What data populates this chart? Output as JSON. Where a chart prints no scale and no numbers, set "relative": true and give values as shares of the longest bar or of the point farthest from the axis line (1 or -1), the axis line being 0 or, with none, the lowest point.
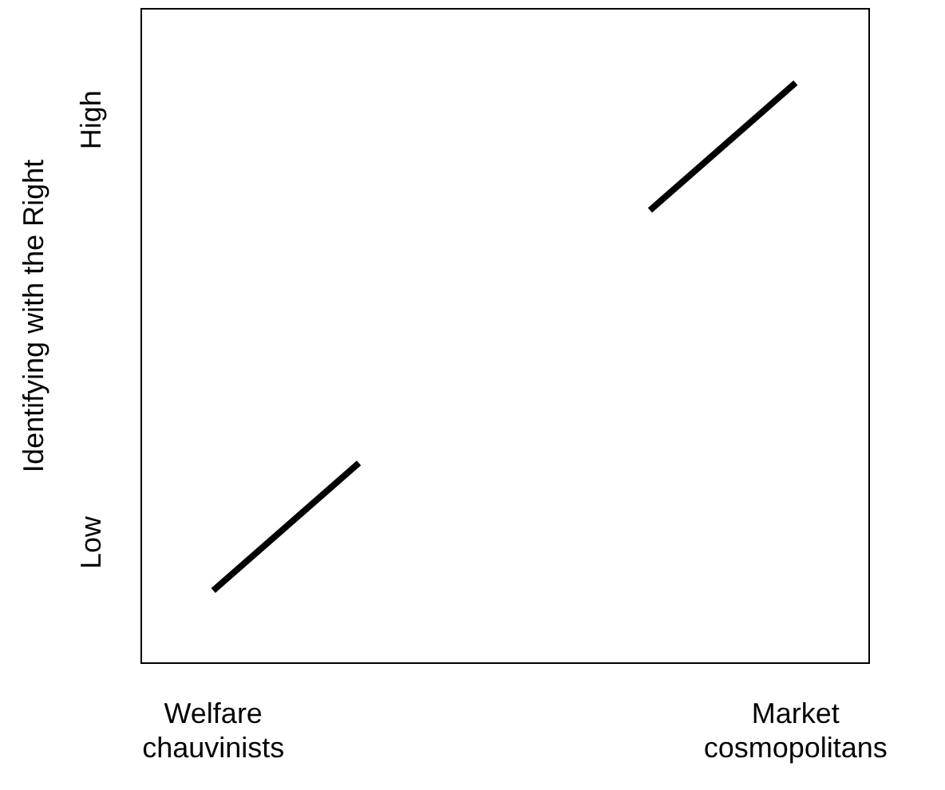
{
  "chart_data": {
    "type": "line",
    "ylabel": "Identifying with the Right",
    "relative": true,
    "categories": [
      "Welfare chauvinists",
      null,
      null,
      null,
      "Market cosmopolitans"
    ],
    "series": [
      {
        "color": "#000000",
        "values": [
          0.124,
          0.344,
          null,
          null,
          null
        ]
      },
      {
        "color": "#000000",
        "values": [
          null,
          null,
          null,
          0.78,
          1
        ]
      }
    ],
    "annotations": [
      "Low",
      "High"
    ],
    "legend": false,
    "grid": false,
    "marker": "none",
    "line_style": "solid"
  }
}
